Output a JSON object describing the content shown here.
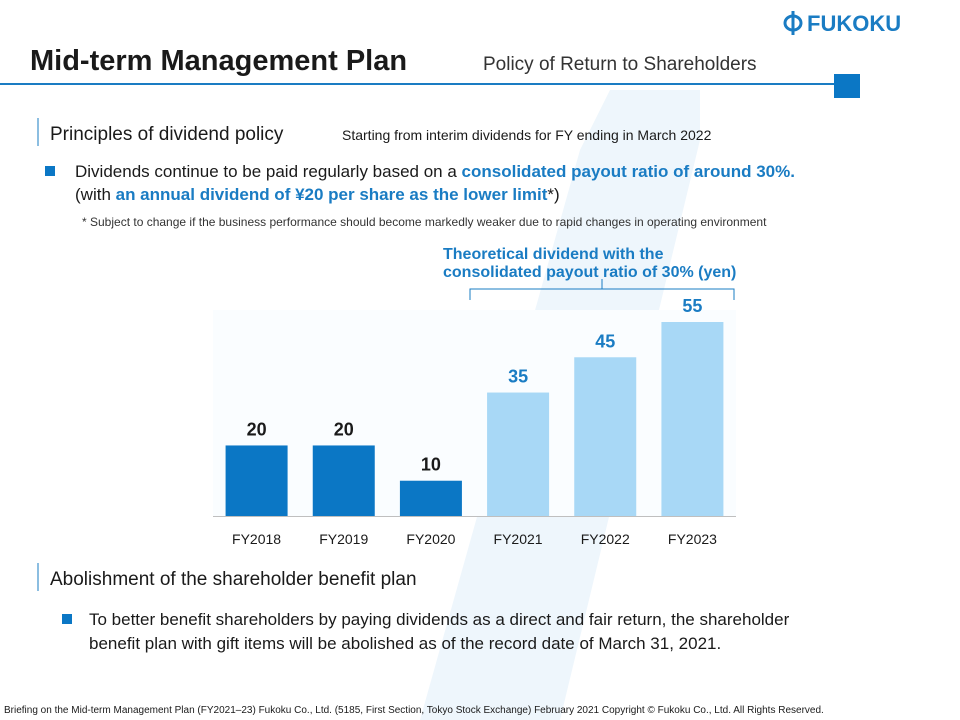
{
  "header": {
    "title": "Mid-term Management Plan",
    "subtitle": "Policy of Return to Shareholders",
    "logo": "FUKOKU"
  },
  "section_1": {
    "heading": "Principles of dividend policy",
    "subheading": "Starting from interim dividends for FY ending in March 2022",
    "bullet": {
      "lines": [
        [
          {
            "text": "Dividends continue to be paid regularly based on a ",
            "emphasis": false
          },
          {
            "text": "consolidated payout ratio of around 30%.",
            "emphasis": true
          }
        ],
        [
          {
            "text": "(with ",
            "emphasis": false
          },
          {
            "text": "an annual dividend of ¥20 per share as the lower limit",
            "emphasis": true
          },
          {
            "text": "*)",
            "emphasis": false
          }
        ]
      ]
    },
    "note": "* Subject to change if the business performance should become markedly weaker due to rapid changes in operating environment"
  },
  "chart_data": {
    "type": "bar",
    "annotation": [
      "Theoretical dividend with the",
      "consolidated payout ratio of 30% (yen)"
    ],
    "categories": [
      "FY2018",
      "FY2019",
      "FY2020",
      "FY2021",
      "FY2022",
      "FY2023"
    ],
    "values": [
      20,
      20,
      10,
      35,
      45,
      55
    ],
    "colors": [
      "#0b77c5",
      "#0b77c5",
      "#0b77c5",
      "#a8d8f6",
      "#a8d8f6",
      "#a8d8f6"
    ],
    "label_colors": [
      "#1a1a1a",
      "#1a1a1a",
      "#1a1a1a",
      "#1a7cc3",
      "#1a7cc3",
      "#1a7cc3"
    ]
  },
  "section_2": {
    "heading": "Abolishment of the shareholder benefit plan",
    "bullet": {
      "lines": [
        "To better benefit shareholders by paying dividends as a direct and fair return, the shareholder",
        "benefit plan with gift items will be abolished as of the record date of March 31, 2021."
      ]
    }
  },
  "footer": "Briefing on the Mid-term Management Plan (FY2021–23)  Fukoku Co., Ltd. (5185, First Section, Tokyo Stock Exchange)   February 2021  Copyright © Fukoku Co., Ltd.  All Rights Reserved."
}
